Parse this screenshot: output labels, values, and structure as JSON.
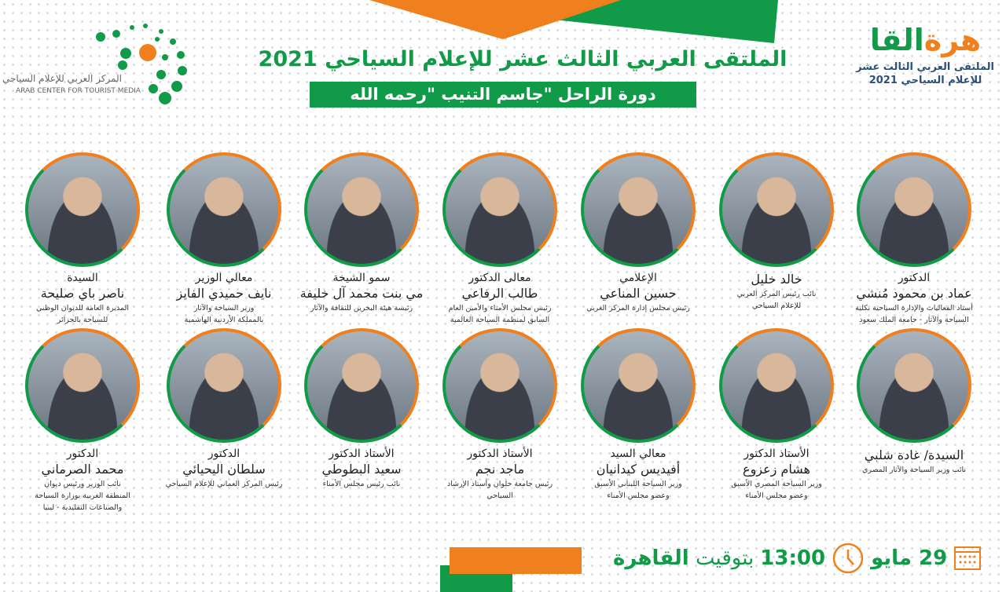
{
  "header": {
    "title": "الملتقى العربي الثالث عشر للإعلام السياحي 2021",
    "subtitle": "دورة الراحل \"جاسم التنيب \"رحمه الله",
    "left_logo": {
      "arabic": "المركز العربي للإعلام السياحي",
      "english": "ARAB CENTER FOR TOURIST MEDIA"
    },
    "right_logo": {
      "word_green": "القا",
      "word_orange": "هرة",
      "line1": "الملتقى العربي الثالث عشر",
      "line2": "للإعلام السياحي 2021"
    }
  },
  "colors": {
    "green": "#119a48",
    "orange": "#f07f1e",
    "navy": "#2c4f7a"
  },
  "speakers": [
    {
      "title": "الدكتور",
      "name": "عماد بن محمود مُنشي",
      "desc": [
        "أستاذ الفعاليات والإدارة السياحية بكلية",
        "السياحة والآثار - جامعة الملك سعود"
      ]
    },
    {
      "title": "",
      "name": "خالد خليل",
      "desc": [
        "نائب رئيس المركز العربي",
        "للإعلام السياحي"
      ]
    },
    {
      "title": "الإعلامي",
      "name": "حسين المناعي",
      "desc": [
        "رئيس مجلس إدارة المركز العربي"
      ]
    },
    {
      "title": "معالى الدكتور",
      "name": "طالب الرفاعي",
      "desc": [
        "رئيس مجلس الأمناء والأمين العام",
        "السابق لمنظمة السياحة العالمية"
      ]
    },
    {
      "title": "سمو الشيخة",
      "name": "مي بنت محمد آل خليفة",
      "desc": [
        "رئيسة هيئة البحرين للثقافة والآثار"
      ]
    },
    {
      "title": "معالي الوزير",
      "name": "نايف حميدي  الفايز",
      "desc": [
        "وزير السياحة والآثار",
        "بالمملكة الأردنية الهاشمية"
      ]
    },
    {
      "title": "السيدة",
      "name": "ناصر باي صليحة",
      "desc": [
        "المديرة العامة للديوان الوطني",
        "للسياحة بالجزائر"
      ]
    },
    {
      "title": "",
      "name": "السيدة/ غادة شلبي",
      "desc": [
        "نائب وزير السياحة والآثار المصري"
      ]
    },
    {
      "title": "الأستاذ الدكتور",
      "name": "هشام زعزوع",
      "desc": [
        "وزير السياحة المصري الأسبق",
        "وعضو مجلس الأمناء"
      ]
    },
    {
      "title": "معالي السيد",
      "name": "أفيديس كيدانيان",
      "desc": [
        "وزير السياحة اللبناني الأسبق",
        "وعضو مجلس الأمناء"
      ]
    },
    {
      "title": "الأستاذ الدكتور",
      "name": "ماجد نجم",
      "desc": [
        "رئيس جامعة حلوان وأستاذ الإرشاد",
        "السياحي"
      ]
    },
    {
      "title": "الأستاذ الدكتور",
      "name": "سعيد البطوطي",
      "desc": [
        "نائب رئيس مجلس الأمناء"
      ]
    },
    {
      "title": "الدكتور",
      "name": "سلطان اليحيائي",
      "desc": [
        "رئيس المركز العماني للإعلام السياحي"
      ]
    },
    {
      "title": "الدكتور",
      "name": "محمد الصرماني",
      "desc": [
        "نائب الوزير ورئيس ديوان",
        "المنطقة الغربية بوزارة السياحة",
        "والصناعات التقليدية - ليبيا"
      ]
    }
  ],
  "event": {
    "date": "29 مايو",
    "time": "13:00",
    "tz_prefix": "بتوقيت",
    "tz_city": "القاهرة",
    "icons": [
      "calendar-icon",
      "clock-icon"
    ]
  }
}
